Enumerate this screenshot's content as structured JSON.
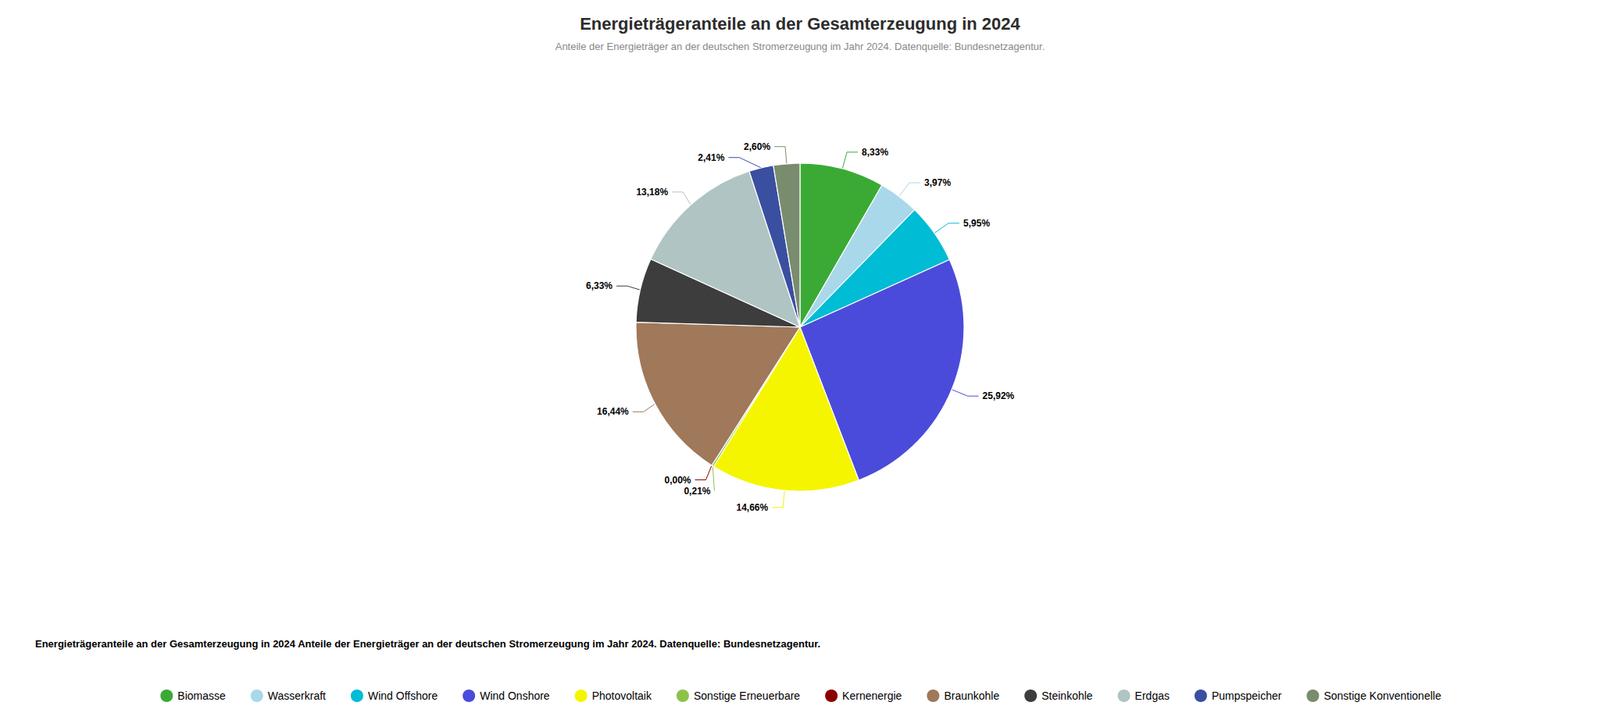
{
  "chart_data": {
    "type": "pie",
    "title": "Energieträgeranteile an der Gesamterzeugung in 2024",
    "subtitle": "Anteile der Energieträger an der deutschen Stromerzeugung im Jahr 2024. Datenquelle: Bundesnetzagentur.",
    "legend_title": "Energieträgeranteile an der Gesamterzeugung in 2024 Anteile der Energieträger an der deutschen Stromerzeugung im Jahr 2024. Datenquelle: Bundesnetzagentur.",
    "categories": [
      "Biomasse",
      "Wasserkraft",
      "Wind Offshore",
      "Wind Onshore",
      "Photovoltaik",
      "Sonstige Erneuerbare",
      "Kernenergie",
      "Braunkohle",
      "Steinkohle",
      "Erdgas",
      "Pumpspeicher",
      "Sonstige Konventionelle"
    ],
    "values": [
      8.33,
      3.97,
      5.95,
      25.92,
      14.66,
      0.21,
      0.0,
      16.44,
      6.33,
      13.18,
      2.41,
      2.6
    ],
    "value_labels": [
      "8,33%",
      "3,97%",
      "5,95%",
      "25,92%",
      "14,66%",
      "0,21%",
      "0,00%",
      "16,44%",
      "6,33%",
      "13,18%",
      "2,41%",
      "2,60%"
    ],
    "colors": [
      "#3aaa35",
      "#a8d8ea",
      "#00bcd4",
      "#4b4bdb",
      "#f5f500",
      "#8bc34a",
      "#8b0000",
      "#a0785a",
      "#3d3d3d",
      "#b0c4c4",
      "#3a4fa0",
      "#7a8c6e"
    ],
    "data_labels": true,
    "legend": "bottom"
  }
}
